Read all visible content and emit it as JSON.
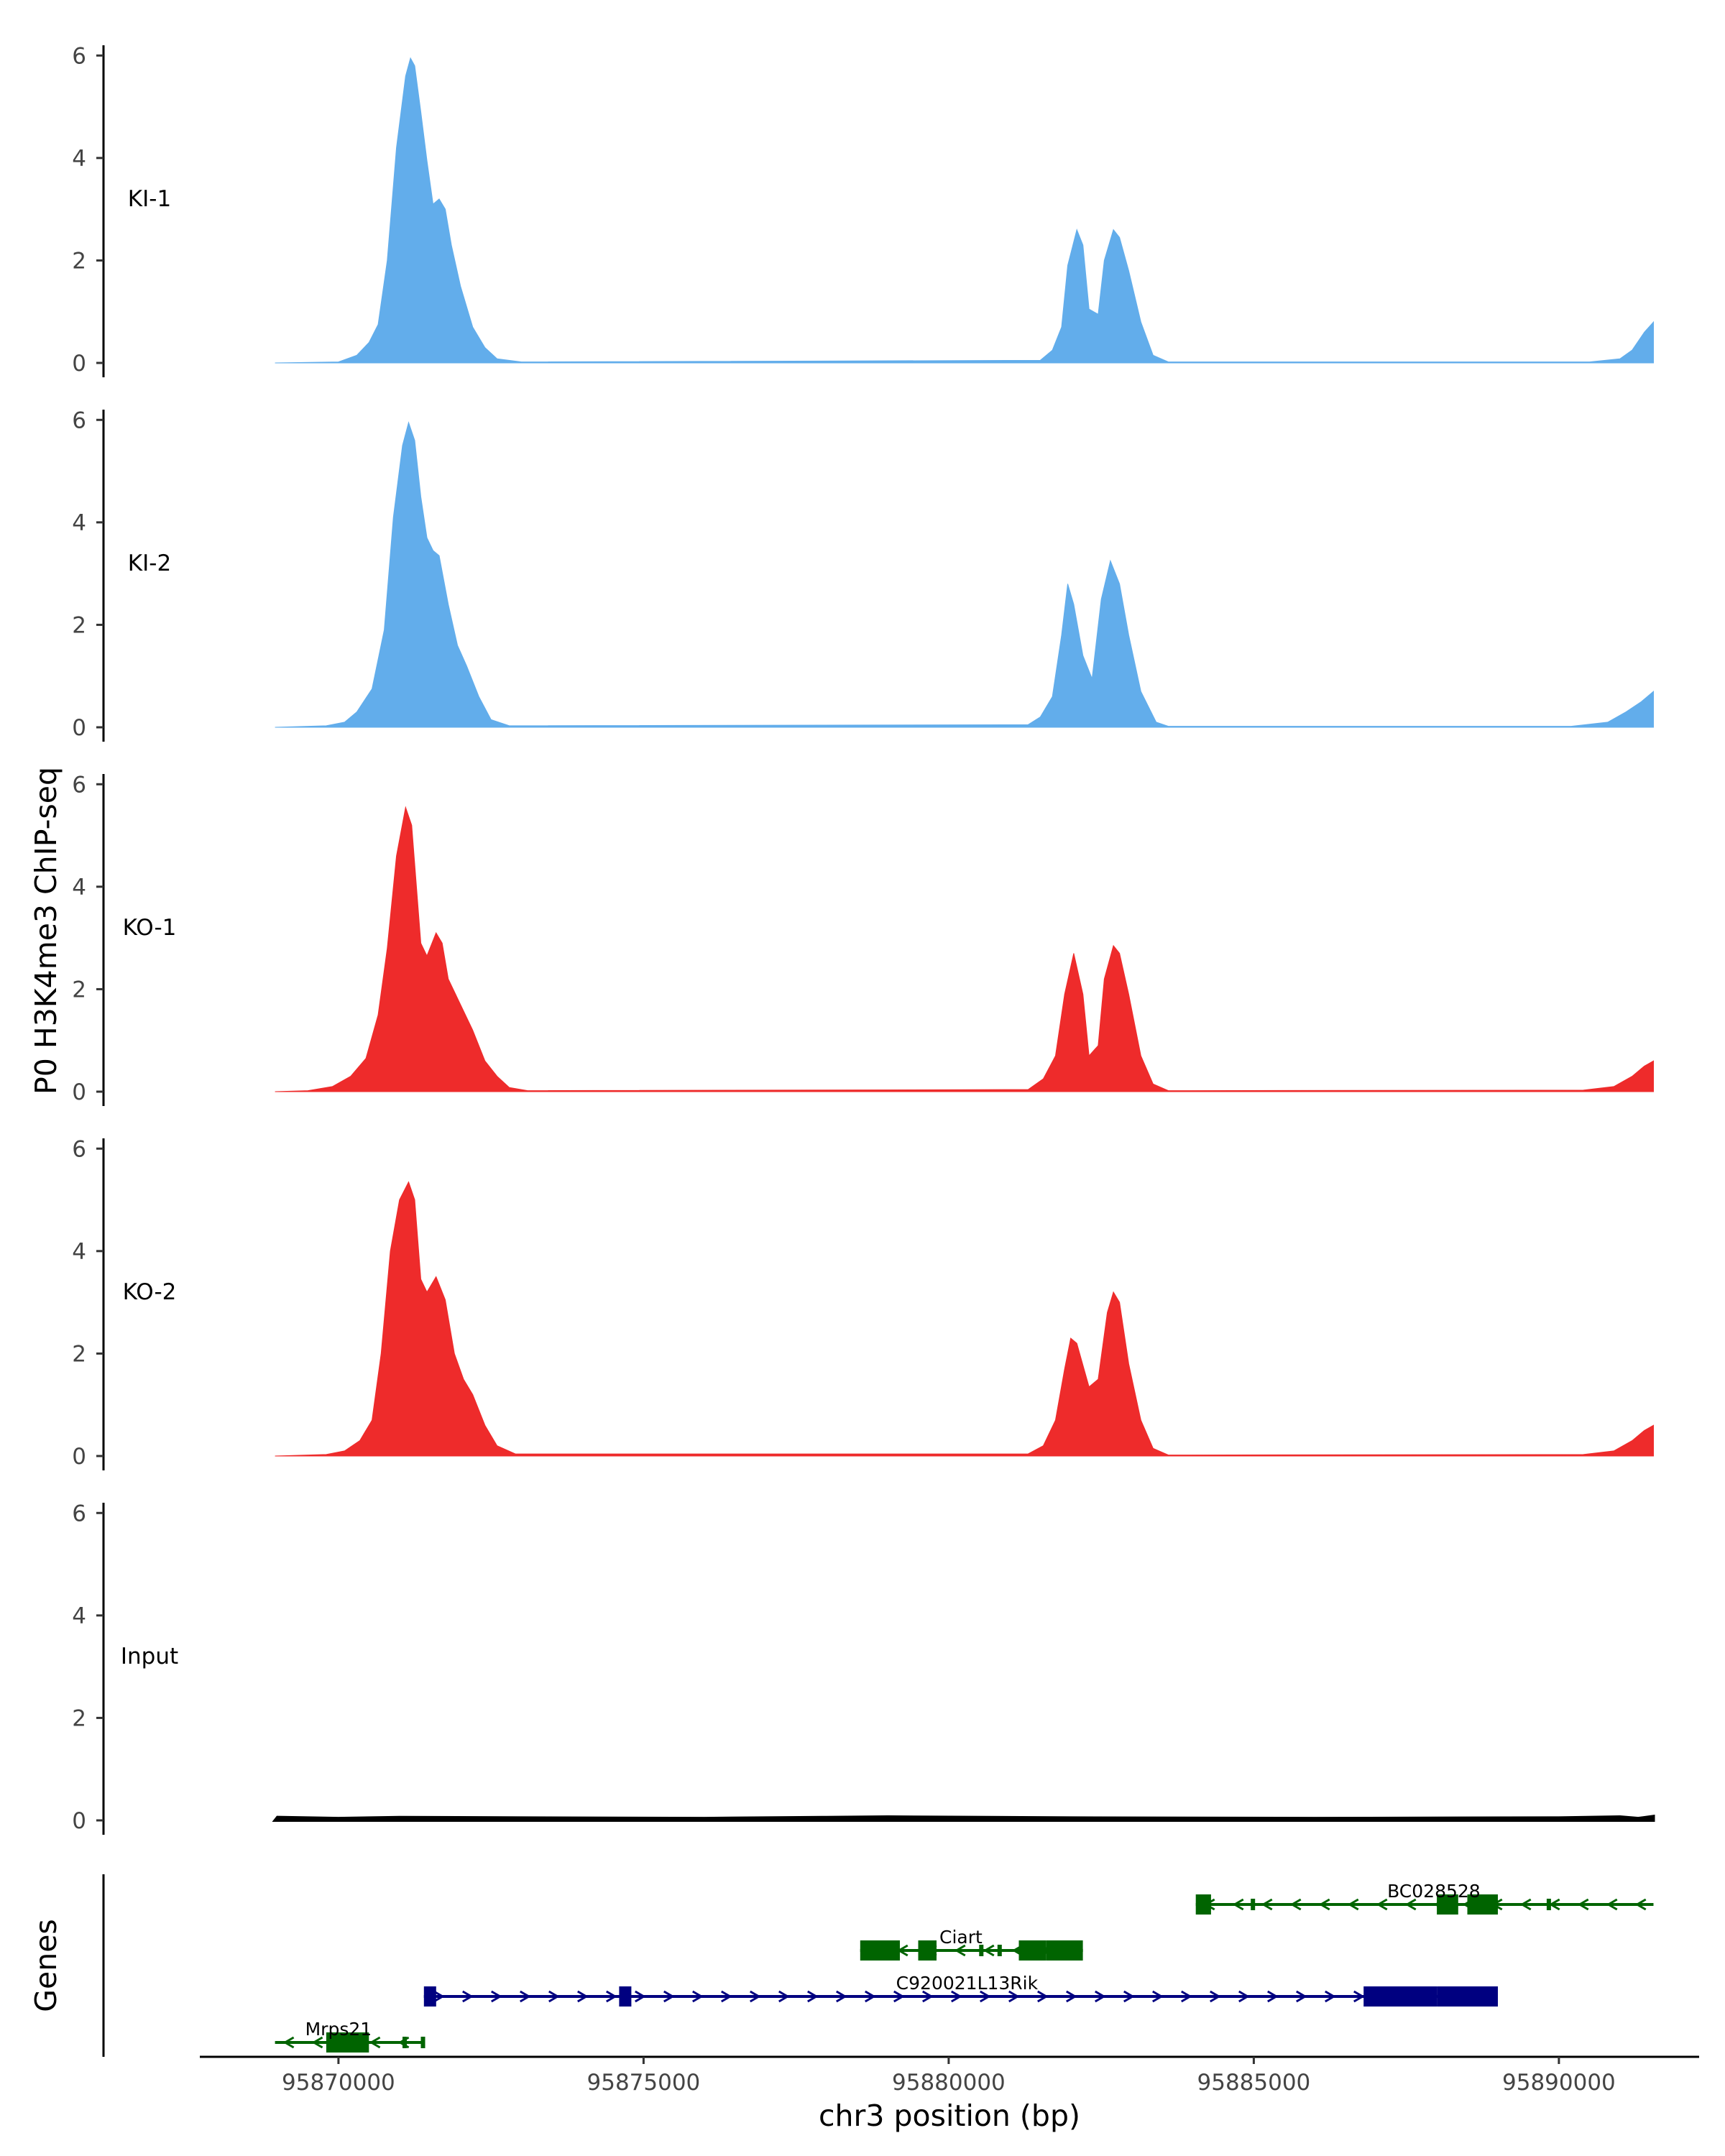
{
  "chart_data": {
    "type": "area",
    "ylabel": "P0 H3K4me3 ChIP-seq",
    "xlabel": "chr3 position (bp)",
    "genes_label": "Genes",
    "xlim": [
      95868000,
      95892500
    ],
    "ylim": [
      0,
      6.2
    ],
    "y_ticks": [
      0,
      2,
      4,
      6
    ],
    "x_ticks": [
      {
        "value": 95870000,
        "label": "95870000"
      },
      {
        "value": 95875000,
        "label": "95875000"
      },
      {
        "value": 95880000,
        "label": "95880000"
      },
      {
        "value": 95885000,
        "label": "95885000"
      },
      {
        "value": 95890000,
        "label": "95890000"
      }
    ],
    "tracks": [
      {
        "name": "KI-1",
        "color": "#62ADEB",
        "points": [
          [
            95868960,
            0
          ],
          [
            95870000,
            0.02
          ],
          [
            95870300,
            0.15
          ],
          [
            95870500,
            0.4
          ],
          [
            95870650,
            0.75
          ],
          [
            95870800,
            2
          ],
          [
            95870950,
            4.2
          ],
          [
            95871100,
            5.6
          ],
          [
            95871180,
            5.95
          ],
          [
            95871250,
            5.8
          ],
          [
            95871350,
            4.9
          ],
          [
            95871450,
            3.95
          ],
          [
            95871550,
            3.1
          ],
          [
            95871650,
            3.2
          ],
          [
            95871750,
            3.0
          ],
          [
            95871850,
            2.3
          ],
          [
            95872000,
            1.5
          ],
          [
            95872200,
            0.7
          ],
          [
            95872400,
            0.3
          ],
          [
            95872600,
            0.08
          ],
          [
            95873000,
            0.02
          ],
          [
            95881500,
            0.05
          ],
          [
            95881700,
            0.25
          ],
          [
            95881850,
            0.7
          ],
          [
            95881950,
            1.9
          ],
          [
            95882100,
            2.6
          ],
          [
            95882200,
            2.3
          ],
          [
            95882300,
            1.05
          ],
          [
            95882450,
            0.95
          ],
          [
            95882550,
            2.0
          ],
          [
            95882700,
            2.6
          ],
          [
            95882800,
            2.45
          ],
          [
            95882950,
            1.8
          ],
          [
            95883150,
            0.8
          ],
          [
            95883350,
            0.15
          ],
          [
            95883600,
            0.02
          ],
          [
            95890500,
            0.02
          ],
          [
            95891000,
            0.08
          ],
          [
            95891200,
            0.25
          ],
          [
            95891400,
            0.6
          ],
          [
            95891550,
            0.8
          ]
        ]
      },
      {
        "name": "KI-2",
        "color": "#62ADEB",
        "points": [
          [
            95868960,
            0
          ],
          [
            95869800,
            0.03
          ],
          [
            95870100,
            0.1
          ],
          [
            95870300,
            0.3
          ],
          [
            95870550,
            0.75
          ],
          [
            95870750,
            1.9
          ],
          [
            95870900,
            4.1
          ],
          [
            95871050,
            5.5
          ],
          [
            95871150,
            5.95
          ],
          [
            95871250,
            5.6
          ],
          [
            95871350,
            4.5
          ],
          [
            95871450,
            3.7
          ],
          [
            95871550,
            3.45
          ],
          [
            95871650,
            3.35
          ],
          [
            95871800,
            2.4
          ],
          [
            95871950,
            1.6
          ],
          [
            95872100,
            1.2
          ],
          [
            95872300,
            0.6
          ],
          [
            95872500,
            0.15
          ],
          [
            95872800,
            0.03
          ],
          [
            95881300,
            0.05
          ],
          [
            95881500,
            0.2
          ],
          [
            95881700,
            0.6
          ],
          [
            95881850,
            1.8
          ],
          [
            95881950,
            2.8
          ],
          [
            95882050,
            2.4
          ],
          [
            95882200,
            1.4
          ],
          [
            95882350,
            0.95
          ],
          [
            95882500,
            2.5
          ],
          [
            95882650,
            3.25
          ],
          [
            95882800,
            2.8
          ],
          [
            95882950,
            1.8
          ],
          [
            95883150,
            0.7
          ],
          [
            95883400,
            0.1
          ],
          [
            95883600,
            0.02
          ],
          [
            95890200,
            0.02
          ],
          [
            95890800,
            0.1
          ],
          [
            95891100,
            0.3
          ],
          [
            95891350,
            0.5
          ],
          [
            95891550,
            0.7
          ]
        ]
      },
      {
        "name": "KO-1",
        "color": "#EE2B2B",
        "points": [
          [
            95868960,
            0
          ],
          [
            95869500,
            0.02
          ],
          [
            95869900,
            0.1
          ],
          [
            95870200,
            0.3
          ],
          [
            95870450,
            0.65
          ],
          [
            95870650,
            1.5
          ],
          [
            95870800,
            2.8
          ],
          [
            95870950,
            4.6
          ],
          [
            95871100,
            5.55
          ],
          [
            95871200,
            5.2
          ],
          [
            95871350,
            2.9
          ],
          [
            95871450,
            2.65
          ],
          [
            95871600,
            3.1
          ],
          [
            95871700,
            2.9
          ],
          [
            95871800,
            2.2
          ],
          [
            95872000,
            1.7
          ],
          [
            95872200,
            1.2
          ],
          [
            95872400,
            0.6
          ],
          [
            95872600,
            0.3
          ],
          [
            95872800,
            0.08
          ],
          [
            95873100,
            0.02
          ],
          [
            95881300,
            0.04
          ],
          [
            95881550,
            0.25
          ],
          [
            95881750,
            0.7
          ],
          [
            95881900,
            1.9
          ],
          [
            95882050,
            2.7
          ],
          [
            95882200,
            1.9
          ],
          [
            95882300,
            0.7
          ],
          [
            95882450,
            0.9
          ],
          [
            95882550,
            2.2
          ],
          [
            95882700,
            2.85
          ],
          [
            95882800,
            2.7
          ],
          [
            95882950,
            1.9
          ],
          [
            95883150,
            0.7
          ],
          [
            95883350,
            0.15
          ],
          [
            95883600,
            0.02
          ],
          [
            95890400,
            0.03
          ],
          [
            95890900,
            0.1
          ],
          [
            95891200,
            0.3
          ],
          [
            95891400,
            0.5
          ],
          [
            95891550,
            0.6
          ]
        ]
      },
      {
        "name": "KO-2",
        "color": "#EE2B2B",
        "points": [
          [
            95868960,
            0
          ],
          [
            95869800,
            0.03
          ],
          [
            95870100,
            0.1
          ],
          [
            95870350,
            0.3
          ],
          [
            95870550,
            0.7
          ],
          [
            95870700,
            2.0
          ],
          [
            95870850,
            4.0
          ],
          [
            95871000,
            5.0
          ],
          [
            95871150,
            5.35
          ],
          [
            95871250,
            5.0
          ],
          [
            95871350,
            3.45
          ],
          [
            95871450,
            3.2
          ],
          [
            95871600,
            3.5
          ],
          [
            95871750,
            3.05
          ],
          [
            95871900,
            2.0
          ],
          [
            95872050,
            1.5
          ],
          [
            95872200,
            1.2
          ],
          [
            95872400,
            0.6
          ],
          [
            95872600,
            0.2
          ],
          [
            95872900,
            0.04
          ],
          [
            95881300,
            0.04
          ],
          [
            95881550,
            0.2
          ],
          [
            95881750,
            0.7
          ],
          [
            95881900,
            1.7
          ],
          [
            95882000,
            2.3
          ],
          [
            95882100,
            2.2
          ],
          [
            95882300,
            1.35
          ],
          [
            95882450,
            1.5
          ],
          [
            95882600,
            2.8
          ],
          [
            95882700,
            3.2
          ],
          [
            95882800,
            3.0
          ],
          [
            95882950,
            1.8
          ],
          [
            95883150,
            0.7
          ],
          [
            95883350,
            0.15
          ],
          [
            95883600,
            0.02
          ],
          [
            95890400,
            0.03
          ],
          [
            95890900,
            0.1
          ],
          [
            95891200,
            0.3
          ],
          [
            95891400,
            0.5
          ],
          [
            95891550,
            0.6
          ]
        ]
      },
      {
        "name": "Input",
        "color": "#000000",
        "points": [
          [
            95868960,
            0
          ],
          [
            95869000,
            0.06
          ],
          [
            95870000,
            0.04
          ],
          [
            95871000,
            0.06
          ],
          [
            95873000,
            0.05
          ],
          [
            95876000,
            0.04
          ],
          [
            95878000,
            0.06
          ],
          [
            95879000,
            0.07
          ],
          [
            95882000,
            0.05
          ],
          [
            95886000,
            0.04
          ],
          [
            95890000,
            0.05
          ],
          [
            95891000,
            0.07
          ],
          [
            95891300,
            0.04
          ],
          [
            95891550,
            0.08
          ]
        ]
      }
    ],
    "genes": [
      {
        "name": "BC028528",
        "color": "#006400",
        "strand": "-",
        "row": 0,
        "start": 95884050,
        "end": 95891550,
        "exons": [
          [
            95884050,
            95884300,
            "cds"
          ],
          [
            95884950,
            95885020,
            "utr"
          ],
          [
            95888000,
            95888350,
            "cds"
          ],
          [
            95888500,
            95889000,
            "cds"
          ],
          [
            95889800,
            95889870,
            "utr"
          ]
        ],
        "label_pos": 95887950
      },
      {
        "name": "Ciart",
        "color": "#006400",
        "strand": "-",
        "row": 1,
        "start": 95878550,
        "end": 95882200,
        "exons": [
          [
            95878550,
            95879200,
            "cds"
          ],
          [
            95879500,
            95879800,
            "cds"
          ],
          [
            95880500,
            95880560,
            "utr"
          ],
          [
            95880800,
            95880860,
            "utr"
          ],
          [
            95881150,
            95881600,
            "cds"
          ],
          [
            95881600,
            95882200,
            "cds"
          ]
        ],
        "label_pos": 95880200
      },
      {
        "name": "C920021L13Rik",
        "color": "#000080",
        "strand": "+",
        "row": 2,
        "start": 95871400,
        "end": 95889000,
        "exons": [
          [
            95871400,
            95871600,
            "cds"
          ],
          [
            95874600,
            95874800,
            "cds"
          ],
          [
            95886800,
            95888000,
            "cds"
          ],
          [
            95888000,
            95889000,
            "cds"
          ]
        ],
        "label_pos": 95880300
      },
      {
        "name": "Mrps21",
        "color": "#006400",
        "strand": "-",
        "row": 3,
        "start": 95868960,
        "end": 95871400,
        "exons": [
          [
            95869800,
            95870500,
            "cds"
          ],
          [
            95871050,
            95871110,
            "utr"
          ],
          [
            95871350,
            95871400,
            "utr"
          ]
        ],
        "label_pos": 95870000
      }
    ]
  }
}
